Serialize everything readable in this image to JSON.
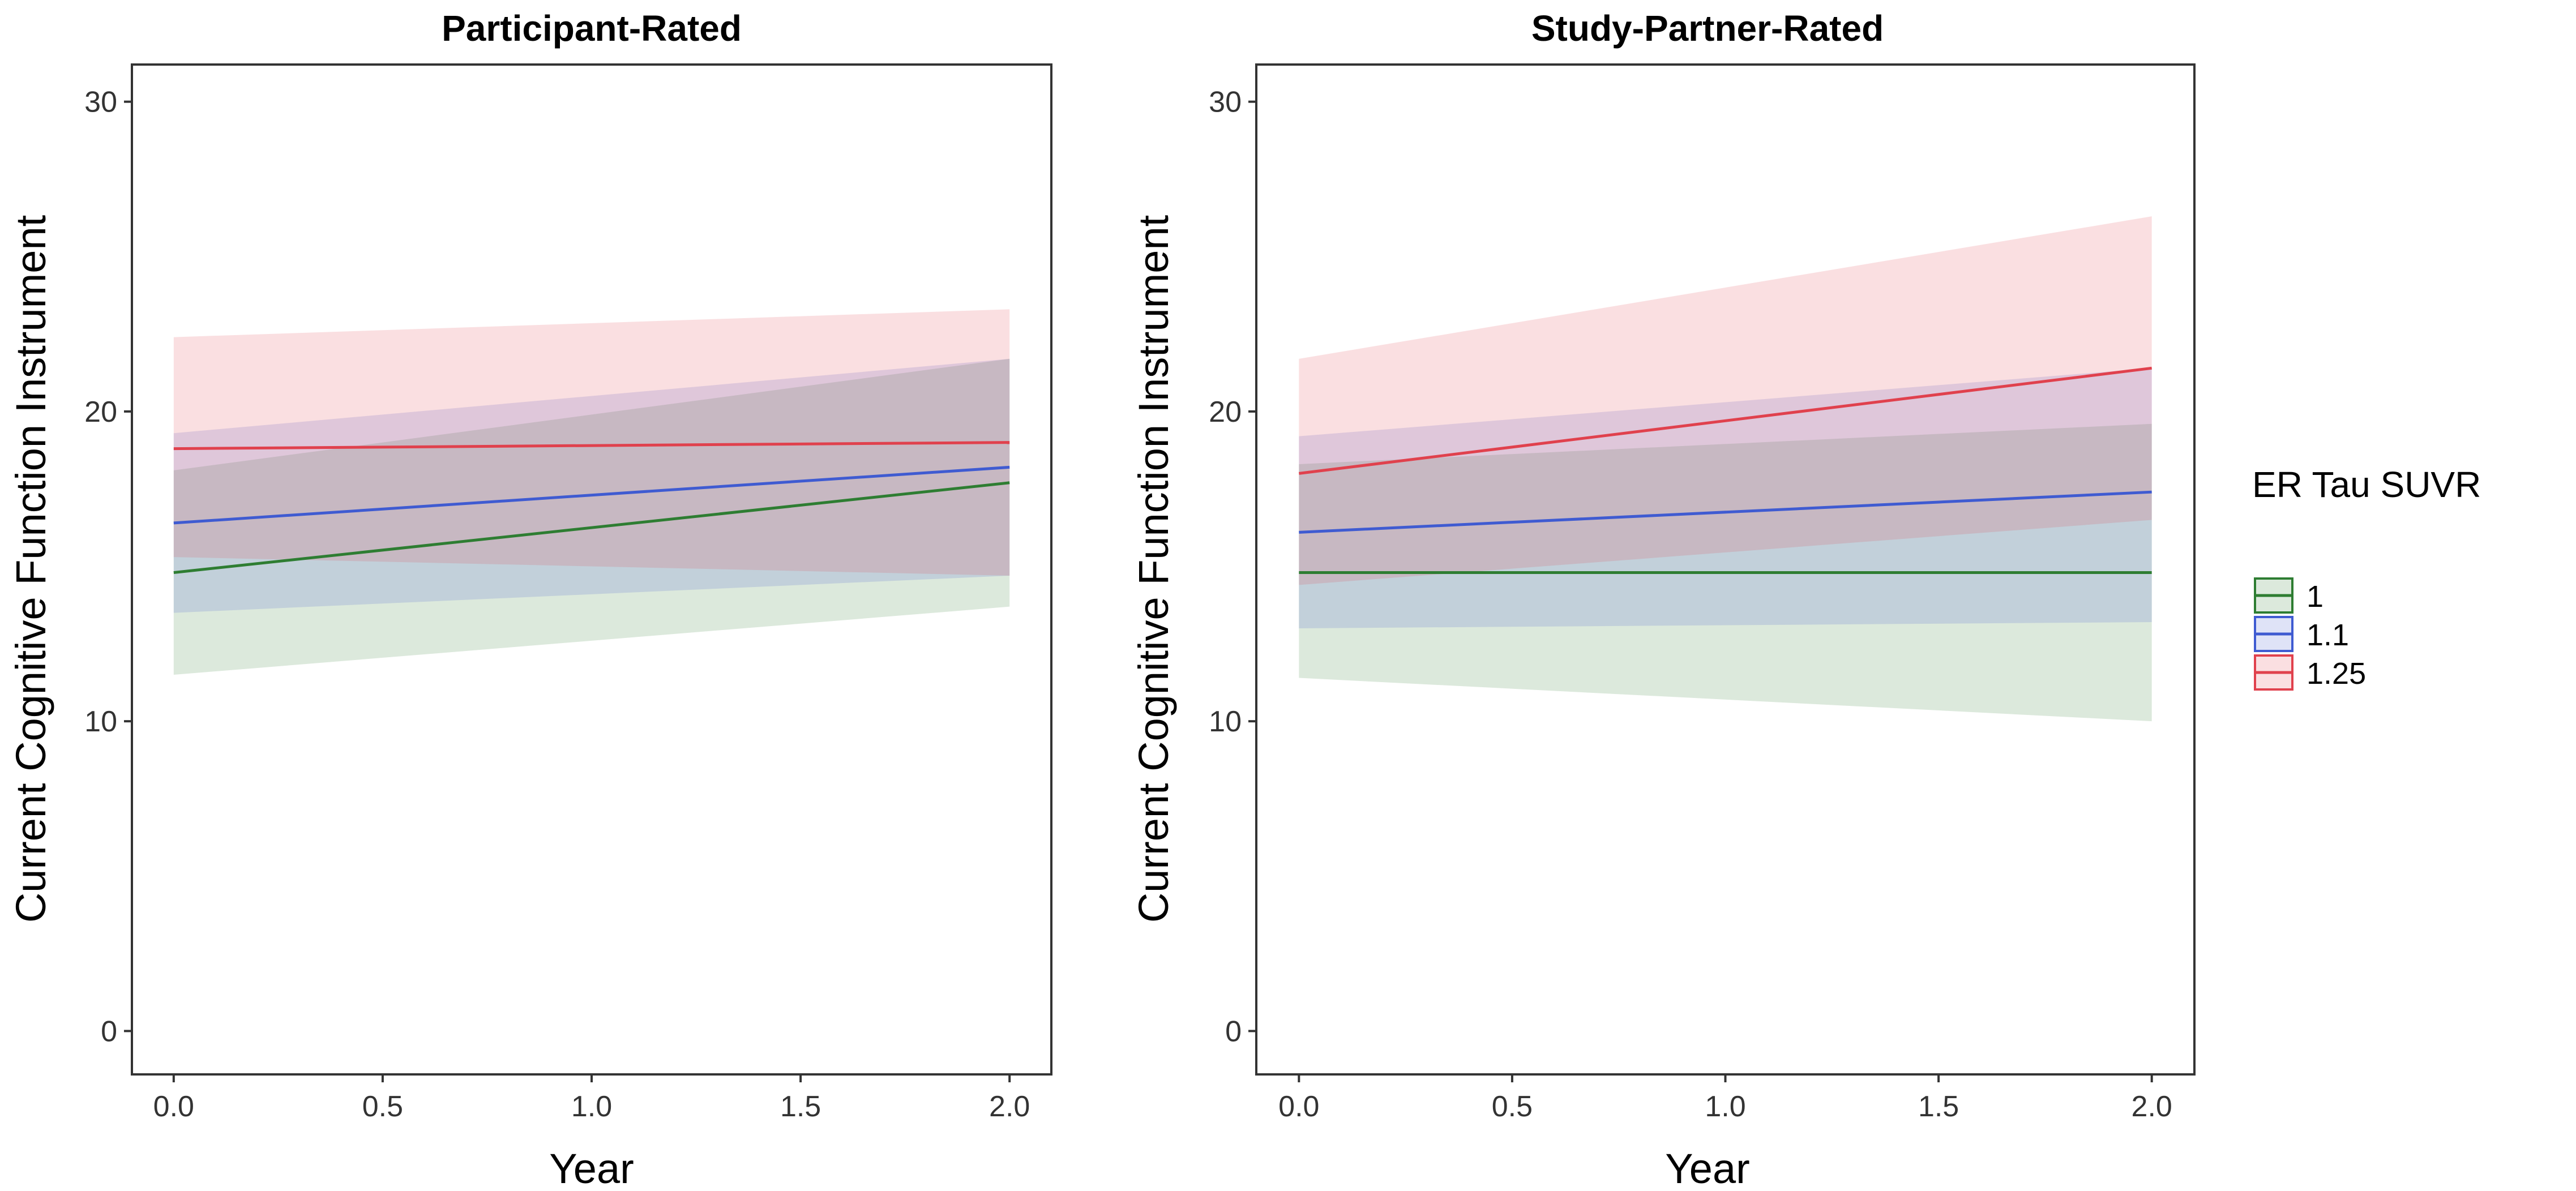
{
  "chart_data": [
    {
      "type": "line",
      "title": "Participant-Rated",
      "xlabel": "Year",
      "ylabel": "Current Cognitive Function Instrument",
      "xlim": [
        -0.1,
        2.1
      ],
      "ylim": [
        -1.4,
        31.2
      ],
      "xticks": [
        0.0,
        0.5,
        1.0,
        1.5,
        2.0
      ],
      "xtick_labels": [
        "0.0",
        "0.5",
        "1.0",
        "1.5",
        "2.0"
      ],
      "yticks": [
        0,
        10,
        20,
        30
      ],
      "ytick_labels": [
        "0",
        "10",
        "20",
        "30"
      ],
      "grid": false,
      "x": [
        0.0,
        2.0
      ],
      "series": [
        {
          "name": "1",
          "color": "#2e7d32",
          "values": [
            14.8,
            17.7
          ],
          "lower": [
            11.5,
            13.7
          ],
          "upper": [
            18.1,
            21.7
          ]
        },
        {
          "name": "1.1",
          "color": "#3f5bd1",
          "values": [
            16.4,
            18.2
          ],
          "lower": [
            13.5,
            14.7
          ],
          "upper": [
            19.3,
            21.7
          ]
        },
        {
          "name": "1.25",
          "color": "#e0414d",
          "values": [
            18.8,
            19.0
          ],
          "lower": [
            15.3,
            14.7
          ],
          "upper": [
            22.4,
            23.3
          ]
        }
      ]
    },
    {
      "type": "line",
      "title": "Study-Partner-Rated",
      "xlabel": "Year",
      "ylabel": "Current Cognitive Function Instrument",
      "xlim": [
        -0.1,
        2.1
      ],
      "ylim": [
        -1.4,
        31.2
      ],
      "xticks": [
        0.0,
        0.5,
        1.0,
        1.5,
        2.0
      ],
      "xtick_labels": [
        "0.0",
        "0.5",
        "1.0",
        "1.5",
        "2.0"
      ],
      "yticks": [
        0,
        10,
        20,
        30
      ],
      "ytick_labels": [
        "0",
        "10",
        "20",
        "30"
      ],
      "grid": false,
      "x": [
        0.0,
        2.0
      ],
      "series": [
        {
          "name": "1",
          "color": "#2e7d32",
          "values": [
            14.8,
            14.8
          ],
          "lower": [
            11.4,
            10.0
          ],
          "upper": [
            18.3,
            19.6
          ]
        },
        {
          "name": "1.1",
          "color": "#3f5bd1",
          "values": [
            16.1,
            17.4
          ],
          "lower": [
            13.0,
            13.2
          ],
          "upper": [
            19.2,
            21.4
          ]
        },
        {
          "name": "1.25",
          "color": "#e0414d",
          "values": [
            18.0,
            21.4
          ],
          "lower": [
            14.4,
            16.5
          ],
          "upper": [
            21.7,
            26.3
          ]
        }
      ]
    }
  ],
  "legend": {
    "title": "ER Tau SUVR",
    "entries": [
      {
        "label": "1",
        "color": "#2e7d32"
      },
      {
        "label": "1.1",
        "color": "#3f5bd1"
      },
      {
        "label": "1.25",
        "color": "#e0414d"
      }
    ],
    "placement": "right"
  }
}
